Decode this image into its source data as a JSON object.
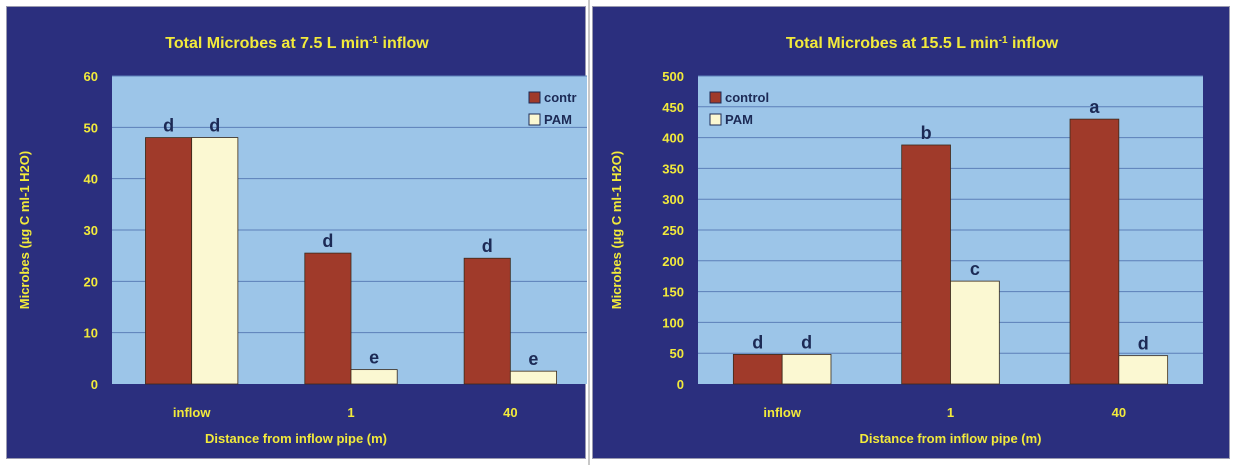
{
  "colors": {
    "background": "#2b2f7e",
    "plot_area": "#9cc5e8",
    "gridline": "#5b7fb8",
    "title_text": "#f2ea3b",
    "control": "#a03a2a",
    "pam": "#fbf8d2",
    "bar_label": "#1c2a55"
  },
  "chart_data": [
    {
      "type": "bar",
      "title": "Total Microbes at 7.5 L min-1 inflow",
      "title_parts": {
        "pre": "Total Microbes at 7.5 L min",
        "sup": "-1",
        "post": " inflow"
      },
      "xlabel": "Distance from inflow pipe (m)",
      "ylabel": "Microbes (µg C ml-1 H2O)",
      "categories": [
        "inflow",
        "1",
        "40"
      ],
      "ylim": [
        0,
        60
      ],
      "yticks": [
        0,
        10,
        20,
        30,
        40,
        50,
        60
      ],
      "grid": true,
      "legend_position": "top-right",
      "series": [
        {
          "name": "control",
          "values": [
            48,
            25.5,
            24.5
          ],
          "labels": [
            "d",
            "d",
            "d"
          ]
        },
        {
          "name": "PAM",
          "values": [
            48,
            2.8,
            2.5
          ],
          "labels": [
            "d",
            "e",
            "e"
          ]
        }
      ],
      "legend_labels": [
        "contr",
        "PAM"
      ]
    },
    {
      "type": "bar",
      "title": "Total Microbes at 15.5 L min-1 inflow",
      "title_parts": {
        "pre": "Total Microbes at 15.5 L min",
        "sup": "-1",
        "post": " inflow"
      },
      "xlabel": "Distance from inflow pipe (m)",
      "ylabel": "Microbes (µg C ml-1 H2O)",
      "categories": [
        "inflow",
        "1",
        "40"
      ],
      "ylim": [
        0,
        500
      ],
      "yticks": [
        0,
        50,
        100,
        150,
        200,
        250,
        300,
        350,
        400,
        450,
        500
      ],
      "grid": true,
      "legend_position": "top-left",
      "series": [
        {
          "name": "control",
          "values": [
            48,
            388,
            430
          ],
          "labels": [
            "d",
            "b",
            "a"
          ]
        },
        {
          "name": "PAM",
          "values": [
            48,
            167,
            46
          ],
          "labels": [
            "d",
            "c",
            "d"
          ]
        }
      ],
      "legend_labels": [
        "control",
        "PAM"
      ]
    }
  ]
}
